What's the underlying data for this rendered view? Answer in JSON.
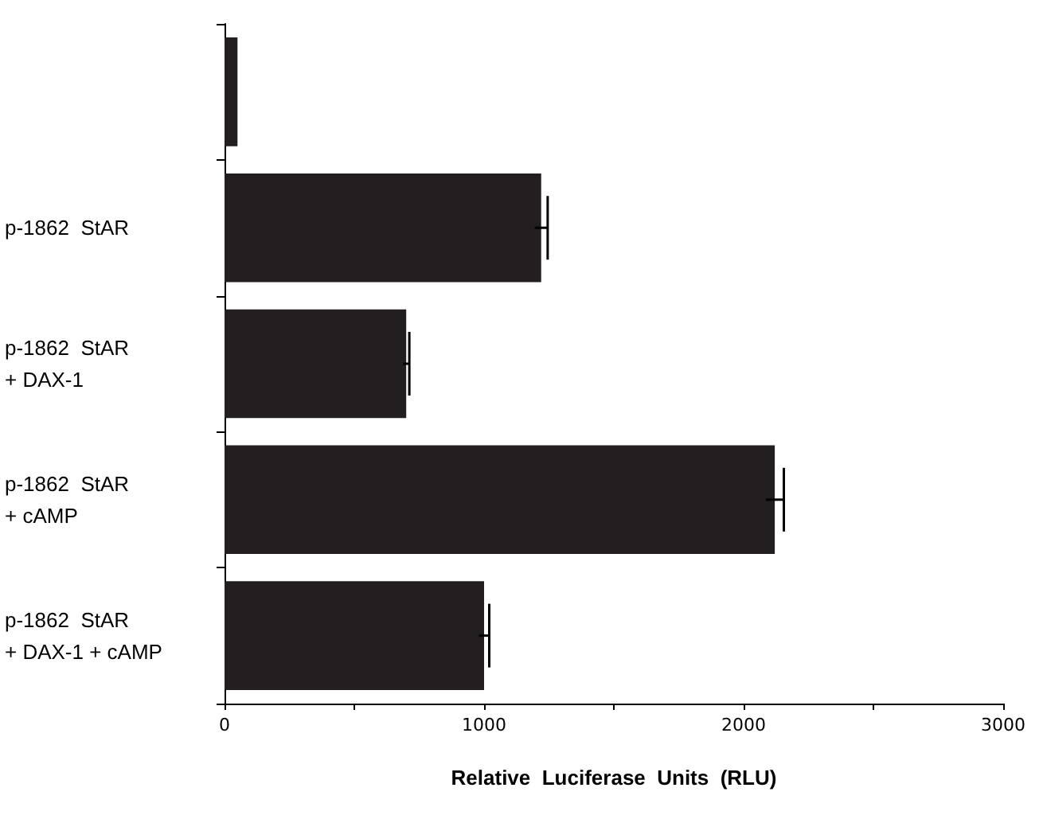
{
  "chart_data": {
    "type": "bar",
    "orientation": "horizontal",
    "xlabel": "Relative  Luciferase  Units  (RLU)",
    "categories": [
      null,
      "p-1862  StAR",
      "p-1862  StAR\n+ DAX-1",
      "p-1862  StAR\n+ cAMP",
      "p-1862  StAR\n+ DAX-1 + cAMP"
    ],
    "values": [
      50,
      1220,
      700,
      2120,
      1000
    ],
    "errors": [
      null,
      25,
      12,
      35,
      20
    ],
    "color": "#231f20",
    "xlim": [
      0,
      3000
    ],
    "xticks": [
      0,
      {
        "value": 500,
        "label": null
      },
      1000,
      {
        "value": 1500,
        "label": null
      },
      2000,
      {
        "value": 2500,
        "label": null
      },
      3000
    ],
    "grid": false
  }
}
